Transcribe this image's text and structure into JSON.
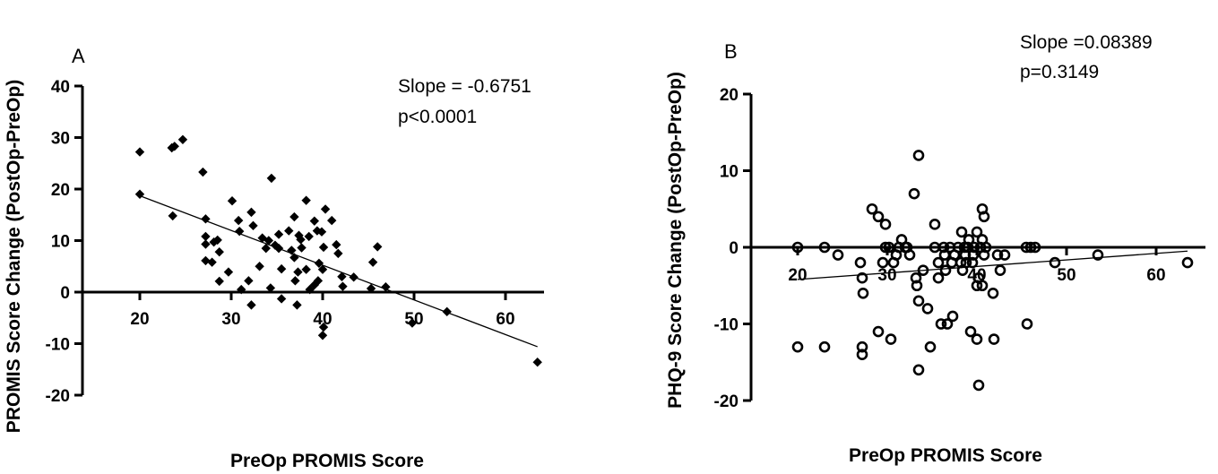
{
  "chart_data": [
    {
      "type": "scatter",
      "panel_label": "A",
      "xlabel": "PreOp PROMIS Score",
      "ylabel": "PROMIS Score Change (PostOp-PreOp)",
      "xlim": [
        20,
        65
      ],
      "ylim": [
        -20,
        40
      ],
      "xticks": [
        20,
        30,
        40,
        50,
        60
      ],
      "yticks": [
        -20,
        -10,
        0,
        10,
        20,
        30,
        40
      ],
      "grid": false,
      "marker": "filled-diamond",
      "annotations": [
        "Slope = -0.6751",
        "p<0.0001"
      ],
      "regression_line": {
        "x": [
          20,
          63.5
        ],
        "y": [
          18.7,
          -10.6
        ]
      },
      "points": [
        {
          "x": 20,
          "y": 27.2
        },
        {
          "x": 20,
          "y": 19
        },
        {
          "x": 23.5,
          "y": 28
        },
        {
          "x": 23.8,
          "y": 28.3
        },
        {
          "x": 24.7,
          "y": 29.6
        },
        {
          "x": 23.6,
          "y": 14.8
        },
        {
          "x": 26.9,
          "y": 23.3
        },
        {
          "x": 27.2,
          "y": 14.2
        },
        {
          "x": 27.2,
          "y": 10.8
        },
        {
          "x": 27.2,
          "y": 9.3
        },
        {
          "x": 27.2,
          "y": 6.1
        },
        {
          "x": 27.9,
          "y": 5.8
        },
        {
          "x": 28.1,
          "y": 9.7
        },
        {
          "x": 28.5,
          "y": 10.1
        },
        {
          "x": 28.7,
          "y": 7.8
        },
        {
          "x": 28.7,
          "y": 2.1
        },
        {
          "x": 29.7,
          "y": 3.9
        },
        {
          "x": 30.1,
          "y": 17.7
        },
        {
          "x": 30.8,
          "y": 13.9
        },
        {
          "x": 30.9,
          "y": 11.8
        },
        {
          "x": 31.1,
          "y": 0.5
        },
        {
          "x": 31.9,
          "y": 2.2
        },
        {
          "x": 32.2,
          "y": 15.5
        },
        {
          "x": 32.4,
          "y": 12.9
        },
        {
          "x": 32.2,
          "y": -2.5
        },
        {
          "x": 33.1,
          "y": 5
        },
        {
          "x": 33.8,
          "y": 8.5
        },
        {
          "x": 33.4,
          "y": 10.5
        },
        {
          "x": 34.1,
          "y": 10
        },
        {
          "x": 34.3,
          "y": 0.8
        },
        {
          "x": 34.4,
          "y": 22.1
        },
        {
          "x": 34.8,
          "y": 9.1
        },
        {
          "x": 35.2,
          "y": 8.5
        },
        {
          "x": 35.2,
          "y": 11.2
        },
        {
          "x": 35.5,
          "y": 4.5
        },
        {
          "x": 35.5,
          "y": -1.3
        },
        {
          "x": 36.3,
          "y": 11.9
        },
        {
          "x": 36.6,
          "y": 8.1
        },
        {
          "x": 36.9,
          "y": 14.6
        },
        {
          "x": 36.9,
          "y": 6.7
        },
        {
          "x": 37.6,
          "y": 10.2
        },
        {
          "x": 37,
          "y": 2.2
        },
        {
          "x": 37.3,
          "y": 3.9
        },
        {
          "x": 37.7,
          "y": 8.6
        },
        {
          "x": 37.2,
          "y": -2.5
        },
        {
          "x": 37.4,
          "y": 11
        },
        {
          "x": 38.2,
          "y": 17.8
        },
        {
          "x": 38.5,
          "y": 10.8
        },
        {
          "x": 38.2,
          "y": 4.4
        },
        {
          "x": 38.6,
          "y": 0.5
        },
        {
          "x": 39.1,
          "y": 13.8
        },
        {
          "x": 39.4,
          "y": 11.9
        },
        {
          "x": 39.6,
          "y": 5.6
        },
        {
          "x": 39.5,
          "y": 2.2
        },
        {
          "x": 39.1,
          "y": 1.4
        },
        {
          "x": 39.9,
          "y": 11.7
        },
        {
          "x": 40.1,
          "y": 8.7
        },
        {
          "x": 40,
          "y": 4.4
        },
        {
          "x": 40.3,
          "y": 16.1
        },
        {
          "x": 40.1,
          "y": -6.8
        },
        {
          "x": 40,
          "y": -8.4
        },
        {
          "x": 41,
          "y": 13.9
        },
        {
          "x": 41.5,
          "y": 9.2
        },
        {
          "x": 41.7,
          "y": 7.5
        },
        {
          "x": 42.1,
          "y": 3
        },
        {
          "x": 42.2,
          "y": 1.1
        },
        {
          "x": 43.4,
          "y": 2.9
        },
        {
          "x": 45.3,
          "y": 0.7
        },
        {
          "x": 45.5,
          "y": 5.8
        },
        {
          "x": 46,
          "y": 8.8
        },
        {
          "x": 46.9,
          "y": 1
        },
        {
          "x": 49.8,
          "y": -6
        },
        {
          "x": 53.6,
          "y": -3.8
        },
        {
          "x": 63.5,
          "y": -13.6
        }
      ]
    },
    {
      "type": "scatter",
      "panel_label": "B",
      "xlabel": "PreOp PROMIS Score",
      "ylabel": "PHQ-9 Score Change (PostOp-PreOp)",
      "xlim": [
        20,
        65
      ],
      "ylim": [
        -20,
        20
      ],
      "xticks": [
        20,
        30,
        40,
        50,
        60
      ],
      "yticks": [
        -20,
        -10,
        0,
        10,
        20
      ],
      "grid": false,
      "marker": "open-circle",
      "annotations": [
        "Slope =0.08389",
        "p=0.3149"
      ],
      "regression_line": {
        "x": [
          20,
          63.5
        ],
        "y": [
          -4.2,
          -0.5
        ]
      },
      "points": [
        {
          "x": 20,
          "y": 0
        },
        {
          "x": 20,
          "y": -13
        },
        {
          "x": 23,
          "y": 0
        },
        {
          "x": 23,
          "y": -13
        },
        {
          "x": 24.5,
          "y": -1
        },
        {
          "x": 27,
          "y": -2
        },
        {
          "x": 27.2,
          "y": -4
        },
        {
          "x": 27.3,
          "y": -6
        },
        {
          "x": 27.2,
          "y": -13
        },
        {
          "x": 27.2,
          "y": -14
        },
        {
          "x": 28.3,
          "y": 5
        },
        {
          "x": 29,
          "y": 4
        },
        {
          "x": 29,
          "y": -11
        },
        {
          "x": 29.5,
          "y": -2
        },
        {
          "x": 29.8,
          "y": 3
        },
        {
          "x": 29.8,
          "y": 0
        },
        {
          "x": 30.2,
          "y": 0
        },
        {
          "x": 30.4,
          "y": -12
        },
        {
          "x": 30.7,
          "y": -2
        },
        {
          "x": 31,
          "y": -1
        },
        {
          "x": 31.3,
          "y": 0
        },
        {
          "x": 31.6,
          "y": 1
        },
        {
          "x": 32,
          "y": 0
        },
        {
          "x": 32.2,
          "y": 0
        },
        {
          "x": 32.5,
          "y": -1
        },
        {
          "x": 33,
          "y": 7
        },
        {
          "x": 33.5,
          "y": 12
        },
        {
          "x": 33.2,
          "y": -4
        },
        {
          "x": 33.3,
          "y": -5
        },
        {
          "x": 33.5,
          "y": -7
        },
        {
          "x": 33.5,
          "y": -16
        },
        {
          "x": 34,
          "y": -3
        },
        {
          "x": 34.5,
          "y": -8
        },
        {
          "x": 34.8,
          "y": -13
        },
        {
          "x": 35.3,
          "y": 3
        },
        {
          "x": 35.3,
          "y": 0
        },
        {
          "x": 35.7,
          "y": -4
        },
        {
          "x": 35.7,
          "y": -2
        },
        {
          "x": 36,
          "y": -10
        },
        {
          "x": 36.3,
          "y": 0
        },
        {
          "x": 36.4,
          "y": -1
        },
        {
          "x": 36.5,
          "y": -3
        },
        {
          "x": 36.7,
          "y": -10
        },
        {
          "x": 37,
          "y": 0
        },
        {
          "x": 37.2,
          "y": -2
        },
        {
          "x": 37.3,
          "y": -9
        },
        {
          "x": 37.5,
          "y": -1
        },
        {
          "x": 37.9,
          "y": 0
        },
        {
          "x": 38.2,
          "y": -2
        },
        {
          "x": 38.3,
          "y": 2
        },
        {
          "x": 38.4,
          "y": -3
        },
        {
          "x": 38.6,
          "y": 0
        },
        {
          "x": 38.7,
          "y": -1
        },
        {
          "x": 38.8,
          "y": -2
        },
        {
          "x": 39,
          "y": 0
        },
        {
          "x": 39.1,
          "y": 1
        },
        {
          "x": 39.3,
          "y": -11
        },
        {
          "x": 39.5,
          "y": -2
        },
        {
          "x": 39.6,
          "y": -1
        },
        {
          "x": 39.7,
          "y": 0
        },
        {
          "x": 40,
          "y": 2
        },
        {
          "x": 40,
          "y": -5
        },
        {
          "x": 40,
          "y": -12
        },
        {
          "x": 40.2,
          "y": -18
        },
        {
          "x": 40.2,
          "y": -4
        },
        {
          "x": 40.4,
          "y": 0
        },
        {
          "x": 40.6,
          "y": 5
        },
        {
          "x": 40.6,
          "y": 1
        },
        {
          "x": 40.6,
          "y": -5
        },
        {
          "x": 40.8,
          "y": 4
        },
        {
          "x": 40.8,
          "y": -1
        },
        {
          "x": 41,
          "y": 0
        },
        {
          "x": 41.8,
          "y": -6
        },
        {
          "x": 41.9,
          "y": -12
        },
        {
          "x": 42.3,
          "y": -1
        },
        {
          "x": 42.6,
          "y": -3
        },
        {
          "x": 43.1,
          "y": -1
        },
        {
          "x": 45.5,
          "y": 0
        },
        {
          "x": 45.6,
          "y": -10
        },
        {
          "x": 46,
          "y": 0
        },
        {
          "x": 46.5,
          "y": 0
        },
        {
          "x": 48.7,
          "y": -2
        },
        {
          "x": 53.5,
          "y": -1
        },
        {
          "x": 63.5,
          "y": -2
        }
      ]
    }
  ]
}
